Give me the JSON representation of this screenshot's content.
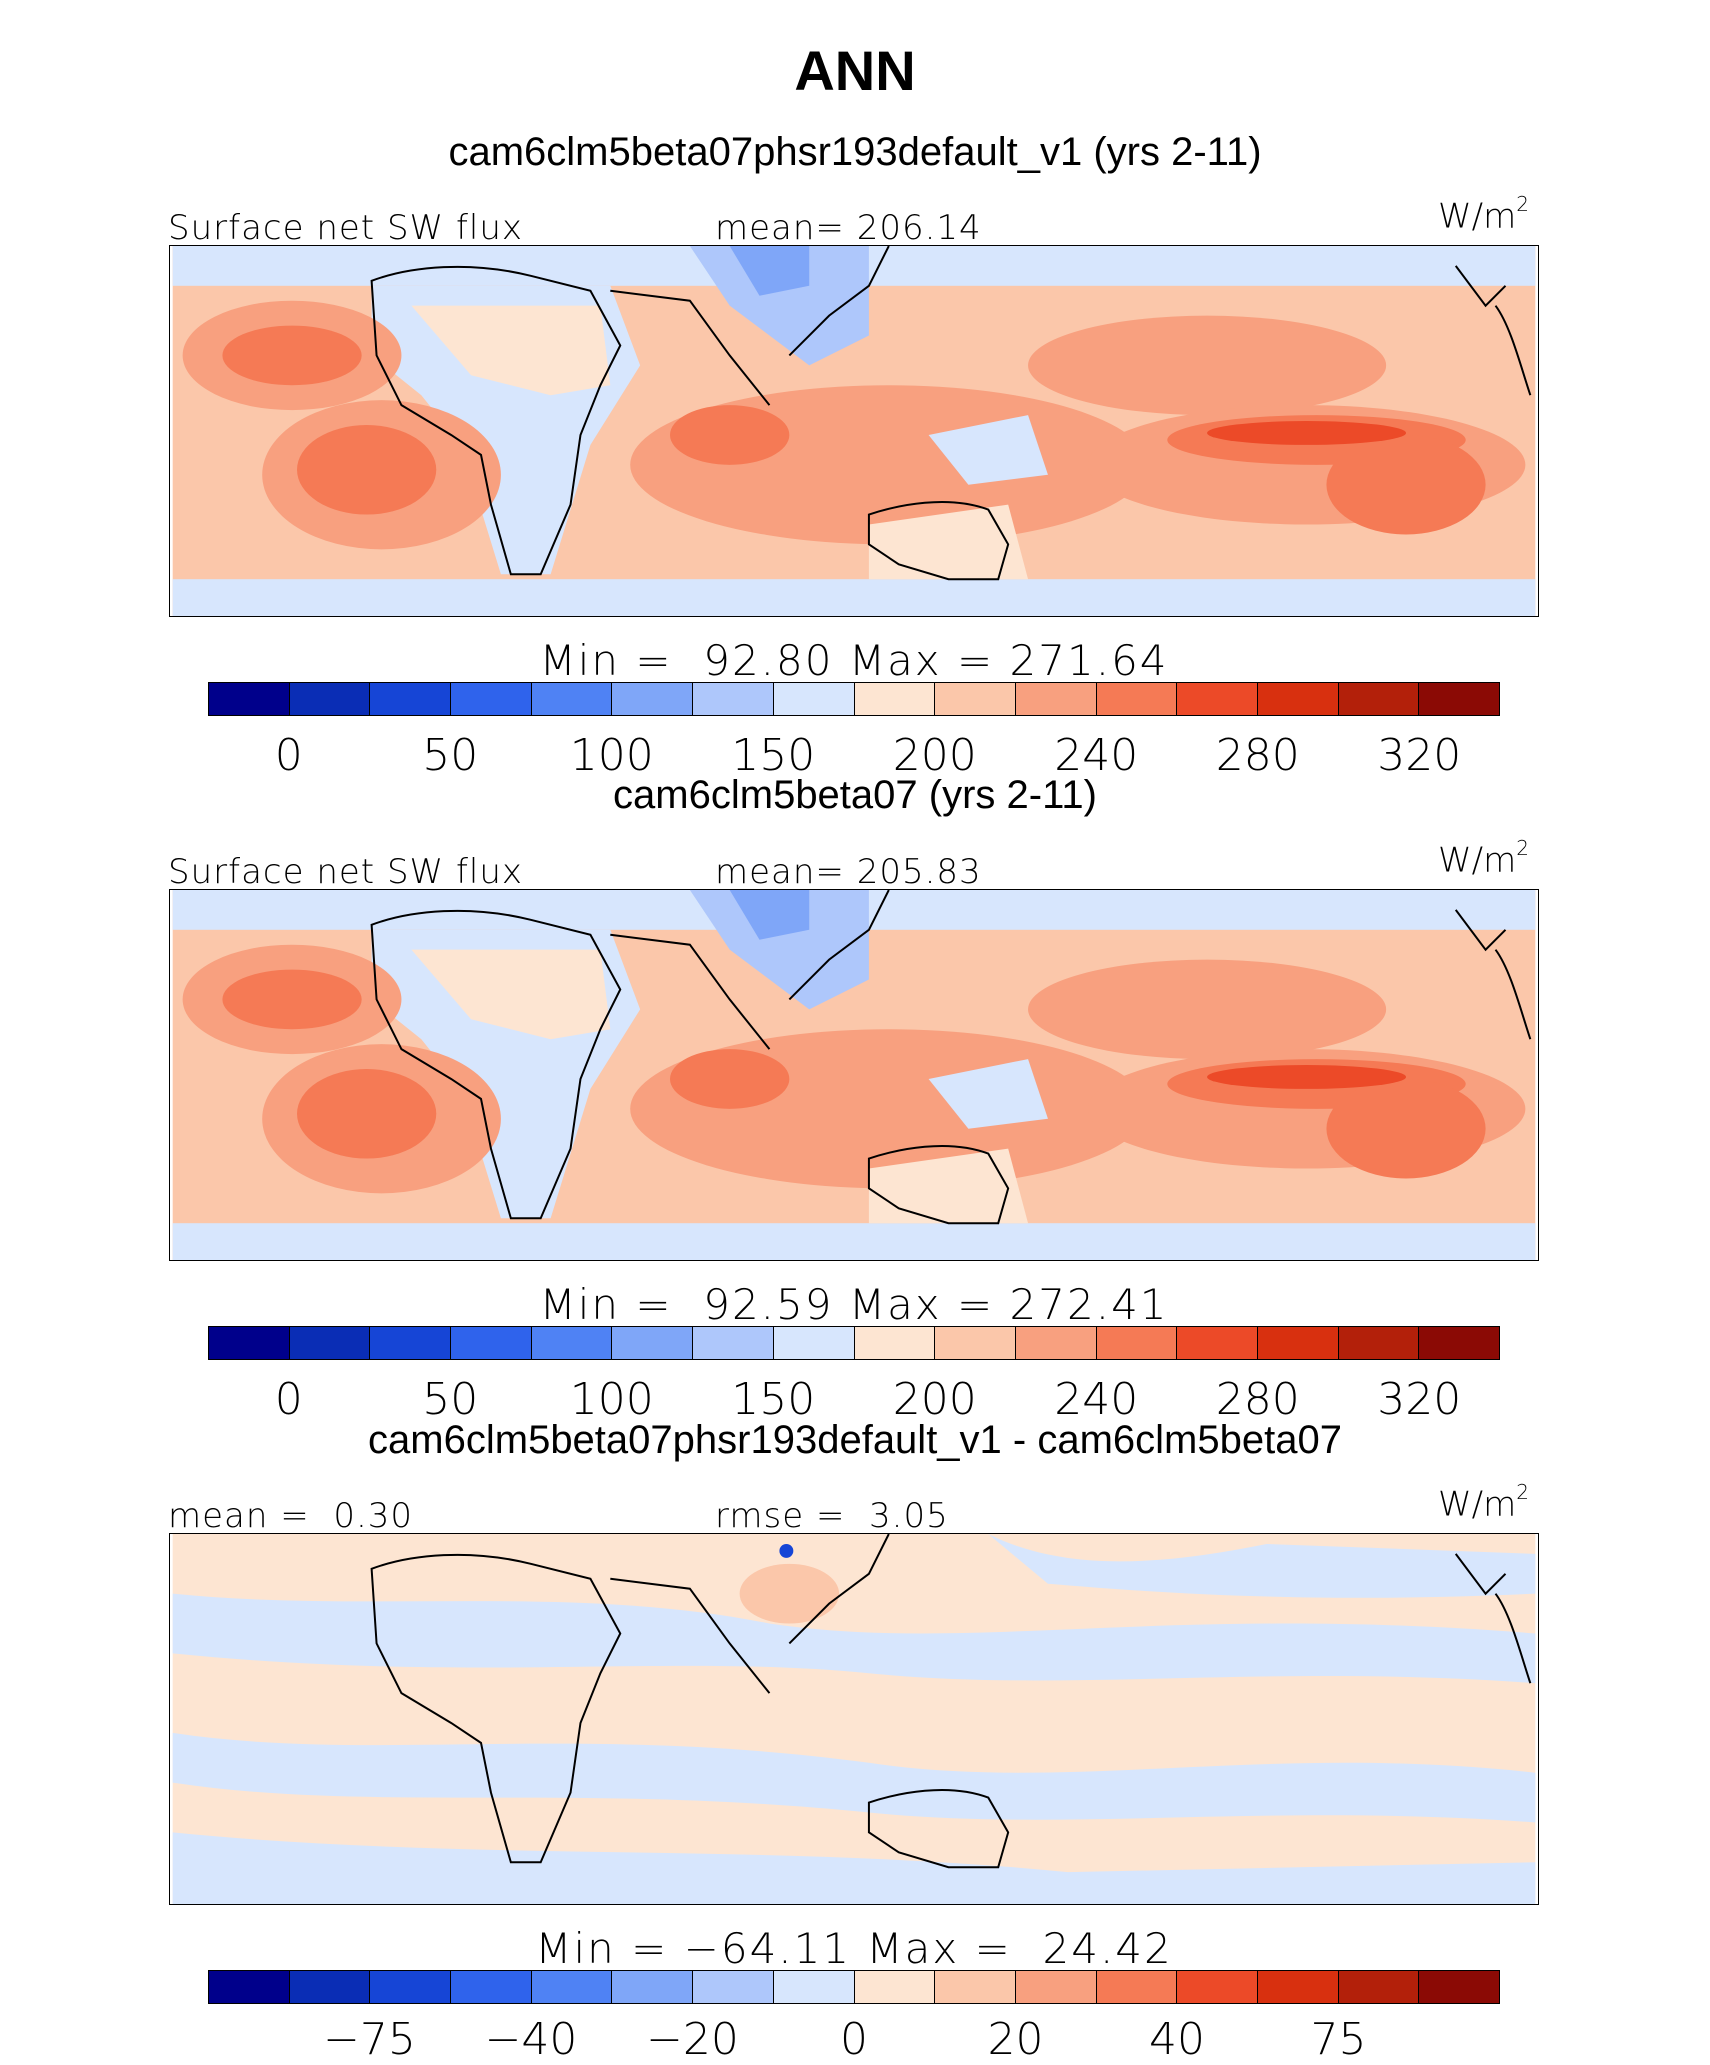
{
  "title": "ANN",
  "colors": [
    "#00008b",
    "#0a2db5",
    "#1645d6",
    "#2f63ec",
    "#4f82f4",
    "#7fa6f8",
    "#aec7fb",
    "#d7e6fd",
    "#fde5d2",
    "#fbc7aa",
    "#f8a07f",
    "#f57a55",
    "#ec4a28",
    "#d8300f",
    "#b3200a",
    "#8b0a05"
  ],
  "panels": [
    {
      "subtitle": "cam6clm5beta07phsr193default_v1 (yrs 2-11)",
      "left_label": "Surface net SW flux",
      "center_label": "mean= 206.14",
      "unit": "W/m",
      "unit_sup": "2",
      "minmax": "Min =  92.80 Max = 271.64",
      "ticks": [
        "0",
        "50",
        "100",
        "150",
        "200",
        "240",
        "280",
        "320"
      ]
    },
    {
      "subtitle": "cam6clm5beta07 (yrs 2-11)",
      "left_label": "Surface net SW flux",
      "center_label": "mean= 205.83",
      "unit": "W/m",
      "unit_sup": "2",
      "minmax": "Min =  92.59 Max = 272.41",
      "ticks": [
        "0",
        "50",
        "100",
        "150",
        "200",
        "240",
        "280",
        "320"
      ]
    },
    {
      "subtitle": "cam6clm5beta07phsr193default_v1 - cam6clm5beta07",
      "left_label": "mean =  0.30",
      "center_label": "rmse =  3.05",
      "unit": "W/m",
      "unit_sup": "2",
      "minmax": "Min = −64.11 Max =  24.42",
      "ticks": [
        "−75",
        "−40",
        "−20",
        "0",
        "20",
        "40",
        "75"
      ]
    }
  ]
}
